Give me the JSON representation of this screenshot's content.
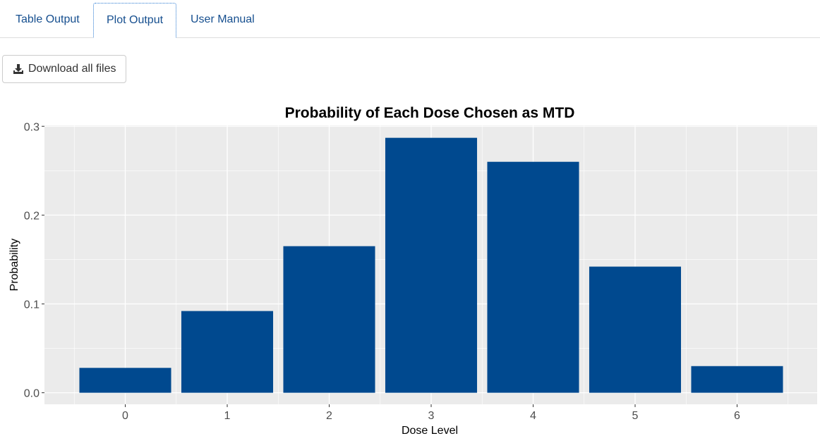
{
  "tabs": [
    {
      "label": "Table Output",
      "active": false
    },
    {
      "label": "Plot Output",
      "active": true
    },
    {
      "label": "User Manual",
      "active": false
    }
  ],
  "toolbar": {
    "download_label": "Download all files",
    "download_icon": "download-icon"
  },
  "colors": {
    "bar": "#00498f",
    "panel": "#ebebeb",
    "tab_text": "#164f8f"
  },
  "chart_data": {
    "type": "bar",
    "title": "Probability of Each Dose Chosen as MTD",
    "xlabel": "Dose Level",
    "ylabel": "Probability",
    "categories": [
      "0",
      "1",
      "2",
      "3",
      "4",
      "5",
      "6"
    ],
    "values": [
      0.028,
      0.092,
      0.165,
      0.287,
      0.26,
      0.142,
      0.03
    ],
    "ylim": [
      -0.013,
      0.301
    ],
    "yticks": [
      0.0,
      0.1,
      0.2,
      0.3
    ],
    "ytick_labels": [
      "0.0",
      "0.1",
      "0.2",
      "0.3"
    ],
    "grid": true,
    "legend": "none"
  }
}
